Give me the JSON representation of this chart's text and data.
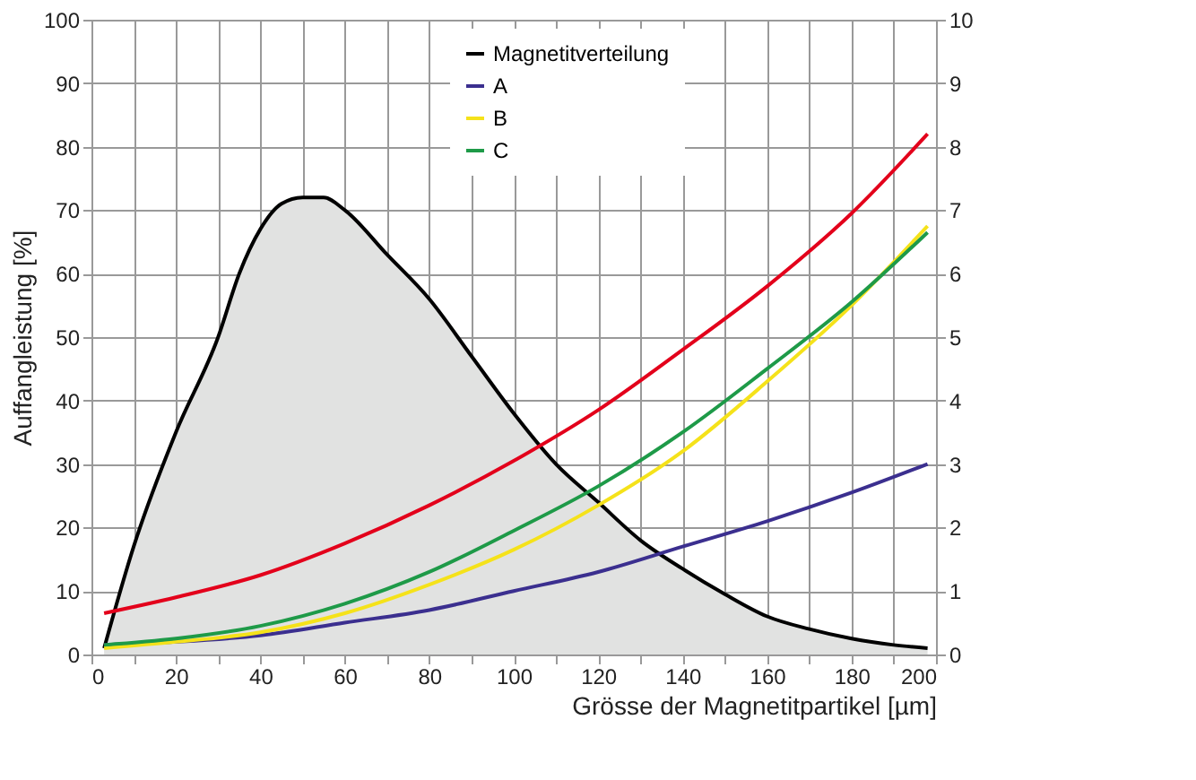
{
  "chart_data": {
    "type": "line",
    "xlabel": "Grösse der Magnetitpartikel [µm]",
    "ylabel": "Auffangleistung [%]",
    "xlim": [
      0,
      200
    ],
    "ylim": [
      0,
      100
    ],
    "y2lim": [
      0,
      10
    ],
    "xticks": [
      0,
      {
        "value": 10,
        "label": null
      },
      20,
      {
        "value": 30,
        "label": null
      },
      40,
      {
        "value": 50,
        "label": null
      },
      60,
      {
        "value": 70,
        "label": null
      },
      80,
      {
        "value": 90,
        "label": null
      },
      100,
      {
        "value": 110,
        "label": null
      },
      120,
      {
        "value": 130,
        "label": null
      },
      140,
      {
        "value": 150,
        "label": null
      },
      160,
      {
        "value": 170,
        "label": null
      },
      180,
      {
        "value": 190,
        "label": null
      },
      200
    ],
    "yticks": [
      0,
      10,
      20,
      30,
      40,
      50,
      60,
      70,
      80,
      90,
      100
    ],
    "y2ticks": [
      0,
      1,
      2,
      3,
      4,
      5,
      6,
      7,
      8,
      9,
      10
    ],
    "grid": true,
    "legend": "top right",
    "series": [
      {
        "name": "Magnetitverteilung",
        "type": "area",
        "axis": "y2",
        "color": "#000000",
        "x": [
          3,
          10,
          20,
          30,
          35,
          40,
          45,
          50,
          55,
          60,
          70,
          80,
          90,
          100,
          110,
          120,
          130,
          140,
          150,
          160,
          170,
          180,
          190,
          198
        ],
        "values": [
          0.1,
          1.7,
          3.5,
          5.0,
          6.0,
          6.7,
          7.1,
          7.2,
          7.2,
          7.0,
          6.3,
          5.6,
          4.7,
          3.8,
          3.0,
          2.4,
          1.8,
          1.35,
          0.95,
          0.6,
          0.4,
          0.25,
          0.15,
          0.1
        ]
      },
      {
        "color": "#e3001b",
        "x": [
          3,
          20,
          40,
          60,
          80,
          100,
          120,
          140,
          160,
          180,
          198
        ],
        "values": [
          6.5,
          9,
          12.5,
          17.5,
          23.5,
          30.5,
          38.5,
          48,
          58,
          69.5,
          82
        ]
      },
      {
        "name": "A",
        "color": "#3b2f8f",
        "x": [
          3,
          20,
          40,
          60,
          80,
          100,
          120,
          140,
          160,
          180,
          198
        ],
        "values": [
          1.5,
          2,
          3,
          5,
          7,
          10,
          13,
          17,
          21,
          25.5,
          30
        ]
      },
      {
        "name": "B",
        "color": "#f5e21a",
        "x": [
          3,
          20,
          40,
          60,
          80,
          100,
          120,
          140,
          160,
          180,
          198
        ],
        "values": [
          1,
          2,
          3.5,
          6.5,
          11,
          16.5,
          23.5,
          32,
          43,
          55,
          67.5
        ]
      },
      {
        "name": "C",
        "color": "#1e9a48",
        "x": [
          3,
          20,
          40,
          60,
          80,
          100,
          120,
          140,
          160,
          180,
          198
        ],
        "values": [
          1.5,
          2.5,
          4.5,
          8,
          13,
          19.5,
          26.5,
          35,
          45,
          55.5,
          66.5
        ]
      }
    ]
  }
}
